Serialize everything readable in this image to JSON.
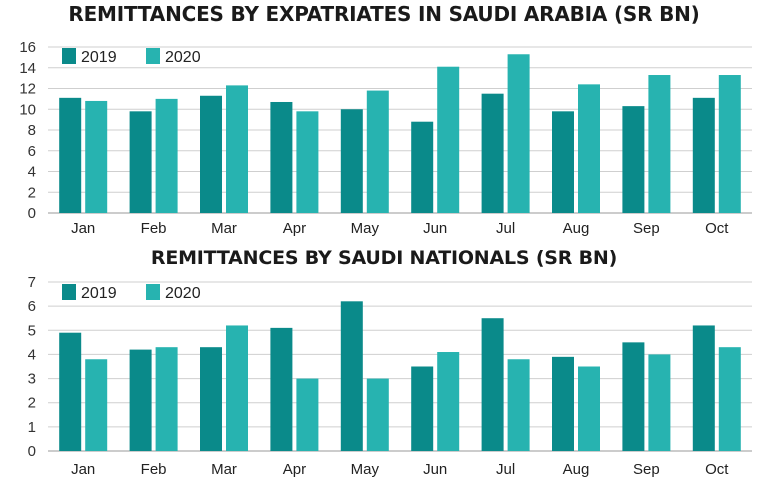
{
  "colors": {
    "series_2019": "#0a8a8a",
    "series_2020": "#27b3b0"
  },
  "chart_data": [
    {
      "type": "bar",
      "title": "REMITTANCES BY EXPATRIATES IN SAUDI ARABIA (SR BN)",
      "categories": [
        "Jan",
        "Feb",
        "Mar",
        "Apr",
        "May",
        "Jun",
        "Jul",
        "Aug",
        "Sep",
        "Oct"
      ],
      "series": [
        {
          "name": "2019",
          "values": [
            11.1,
            9.8,
            11.3,
            10.7,
            10.0,
            8.8,
            11.5,
            9.8,
            10.3,
            11.1
          ]
        },
        {
          "name": "2020",
          "values": [
            10.8,
            11.0,
            12.3,
            9.8,
            11.8,
            14.1,
            15.3,
            12.4,
            13.3,
            13.3
          ]
        }
      ],
      "ylim": [
        0,
        16
      ],
      "yticks": [
        0,
        2,
        4,
        6,
        8,
        10,
        12,
        14,
        16
      ],
      "grid": true,
      "legend_position": "top-left"
    },
    {
      "type": "bar",
      "title": "REMITTANCES BY SAUDI NATIONALS (SR BN)",
      "categories": [
        "Jan",
        "Feb",
        "Mar",
        "Apr",
        "May",
        "Jun",
        "Jul",
        "Aug",
        "Sep",
        "Oct"
      ],
      "series": [
        {
          "name": "2019",
          "values": [
            4.9,
            4.2,
            4.3,
            5.1,
            6.2,
            3.5,
            5.5,
            3.9,
            4.5,
            5.2
          ]
        },
        {
          "name": "2020",
          "values": [
            3.8,
            4.3,
            5.2,
            3.0,
            3.0,
            4.1,
            3.8,
            3.5,
            4.0,
            4.3
          ]
        }
      ],
      "ylim": [
        0,
        7
      ],
      "yticks": [
        0,
        1,
        2,
        3,
        4,
        5,
        6,
        7
      ],
      "grid": true,
      "legend_position": "top-left"
    }
  ]
}
